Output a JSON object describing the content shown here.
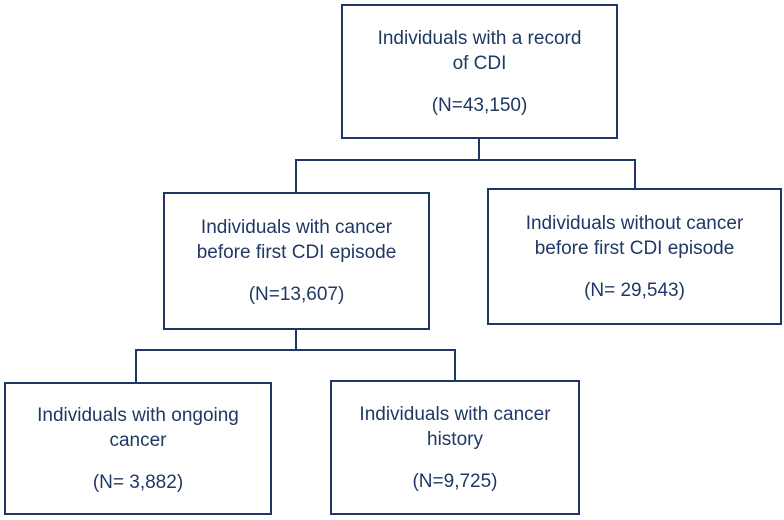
{
  "diagram": {
    "type": "flowchart",
    "accent_color": "#1f3864",
    "background_color": "#ffffff"
  },
  "boxes": {
    "root": {
      "line1": "Individuals with a record",
      "line2": "of CDI",
      "count": "(N=43,150)"
    },
    "cancer": {
      "line1": "Individuals with cancer",
      "line2": "before first CDI episode",
      "count": "(N=13,607)"
    },
    "nocancer": {
      "line1": "Individuals without cancer",
      "line2": "before first CDI episode",
      "count": "(N= 29,543)"
    },
    "ongoing": {
      "line1": "Individuals with ongoing",
      "line2": "cancer",
      "count": "(N= 3,882)"
    },
    "history": {
      "line1": "Individuals with cancer",
      "line2": "history",
      "count": "(N=9,725)"
    }
  }
}
